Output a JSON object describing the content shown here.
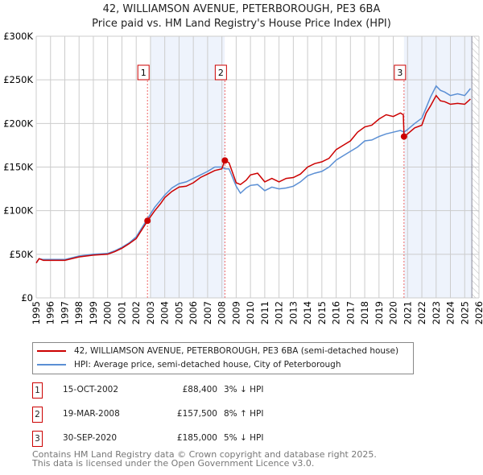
{
  "title_line1": "42, WILLIAMSON AVENUE, PETERBOROUGH, PE3 6BA",
  "title_line2": "Price paid vs. HM Land Registry's House Price Index (HPI)",
  "chart_data": {
    "type": "line",
    "ylabel": "",
    "xlabel": "",
    "xlim": [
      1995,
      2026
    ],
    "ylim": [
      0,
      300000
    ],
    "yticks": [
      {
        "v": 0,
        "label": "£0"
      },
      {
        "v": 50000,
        "label": "£50K"
      },
      {
        "v": 100000,
        "label": "£100K"
      },
      {
        "v": 150000,
        "label": "£150K"
      },
      {
        "v": 200000,
        "label": "£200K"
      },
      {
        "v": 250000,
        "label": "£250K"
      },
      {
        "v": 300000,
        "label": "£300K"
      }
    ],
    "xticks": [
      "1995",
      "1996",
      "1997",
      "1998",
      "1999",
      "2000",
      "2001",
      "2002",
      "2003",
      "2004",
      "2005",
      "2006",
      "2007",
      "2008",
      "2009",
      "2010",
      "2011",
      "2012",
      "2013",
      "2014",
      "2015",
      "2016",
      "2017",
      "2018",
      "2019",
      "2020",
      "2021",
      "2022",
      "2023",
      "2024",
      "2025",
      "2026"
    ],
    "shaded_ranges": [
      [
        2003,
        2008.2
      ],
      [
        2020.75,
        2025.5
      ]
    ],
    "hatched_from": 2025.5,
    "colors": {
      "property": "#cc0000",
      "hpi": "#5b8fd4"
    },
    "series": [
      {
        "name": "property",
        "x": [
          1995,
          1995.2,
          1995.5,
          1996,
          1997,
          1998,
          1999,
          2000,
          2000.5,
          2001,
          2001.5,
          2002,
          2002.8,
          2003.3,
          2003.7,
          2004,
          2004.5,
          2005,
          2005.5,
          2006,
          2006.5,
          2007,
          2007.5,
          2008,
          2008.2,
          2008.5,
          2009,
          2009.3,
          2009.7,
          2010,
          2010.5,
          2011,
          2011.5,
          2012,
          2012.5,
          2013,
          2013.5,
          2014,
          2014.5,
          2015,
          2015.5,
          2016,
          2016.5,
          2017,
          2017.5,
          2018,
          2018.5,
          2019,
          2019.5,
          2020,
          2020.5,
          2020.7,
          2020.75,
          2021,
          2021.5,
          2022,
          2022.3,
          2022.6,
          2023,
          2023.3,
          2023.6,
          2024,
          2024.5,
          2025,
          2025.4
        ],
        "y": [
          40000,
          45000,
          43000,
          43000,
          43000,
          47000,
          49000,
          50000,
          53000,
          57000,
          62000,
          68000,
          88400,
          100000,
          108000,
          115000,
          122000,
          127000,
          128000,
          132000,
          138000,
          142000,
          146000,
          148000,
          157500,
          155000,
          132000,
          130000,
          135000,
          141000,
          143000,
          133000,
          137000,
          133000,
          137000,
          138000,
          142000,
          150000,
          154000,
          156000,
          160000,
          170000,
          175000,
          180000,
          190000,
          196000,
          198000,
          205000,
          210000,
          208000,
          212000,
          210000,
          185000,
          188000,
          195000,
          198000,
          212000,
          220000,
          232000,
          226000,
          225000,
          222000,
          223000,
          222000,
          228000
        ]
      },
      {
        "name": "hpi",
        "x": [
          1995,
          1995.2,
          1995.5,
          1996,
          1997,
          1998,
          1999,
          2000,
          2000.5,
          2001,
          2001.5,
          2002,
          2002.8,
          2003.3,
          2003.7,
          2004,
          2004.5,
          2005,
          2005.5,
          2006,
          2006.5,
          2007,
          2007.5,
          2008,
          2008.2,
          2008.5,
          2009,
          2009.3,
          2009.7,
          2010,
          2010.5,
          2011,
          2011.5,
          2012,
          2012.5,
          2013,
          2013.5,
          2014,
          2014.5,
          2015,
          2015.5,
          2016,
          2016.5,
          2017,
          2017.5,
          2018,
          2018.5,
          2019,
          2019.5,
          2020,
          2020.5,
          2020.75,
          2021,
          2021.5,
          2022,
          2022.3,
          2022.6,
          2023,
          2023.3,
          2023.6,
          2024,
          2024.5,
          2025,
          2025.4
        ],
        "y": [
          40000,
          45000,
          44000,
          44000,
          44000,
          48000,
          50000,
          51000,
          54000,
          58000,
          63000,
          70000,
          91000,
          104000,
          112000,
          118000,
          126000,
          131000,
          133000,
          137000,
          141000,
          145000,
          150000,
          150000,
          148000,
          148000,
          128000,
          120000,
          126000,
          129000,
          130000,
          123000,
          127000,
          125000,
          126000,
          128000,
          133000,
          140000,
          143000,
          145000,
          150000,
          158000,
          163000,
          168000,
          173000,
          180000,
          181000,
          185000,
          188000,
          190000,
          192000,
          190000,
          193000,
          200000,
          206000,
          218000,
          230000,
          243000,
          238000,
          236000,
          232000,
          234000,
          232000,
          240000
        ]
      }
    ],
    "annotations": [
      {
        "label": "1",
        "x": 2002.79,
        "y": 88400
      },
      {
        "label": "2",
        "x": 2008.21,
        "y": 157500
      },
      {
        "label": "3",
        "x": 2020.75,
        "y": 185000
      }
    ]
  },
  "legend": {
    "property": "42, WILLIAMSON AVENUE, PETERBOROUGH, PE3 6BA (semi-detached house)",
    "hpi": "HPI: Average price, semi-detached house, City of Peterborough"
  },
  "transactions": [
    {
      "num": "1",
      "date": "15-OCT-2002",
      "price": "£88,400",
      "delta": "3% ↓ HPI"
    },
    {
      "num": "2",
      "date": "19-MAR-2008",
      "price": "£157,500",
      "delta": "8% ↑ HPI"
    },
    {
      "num": "3",
      "date": "30-SEP-2020",
      "price": "£185,000",
      "delta": "5% ↓ HPI"
    }
  ],
  "footer_line1": "Contains HM Land Registry data © Crown copyright and database right 2025.",
  "footer_line2": "This data is licensed under the Open Government Licence v3.0."
}
